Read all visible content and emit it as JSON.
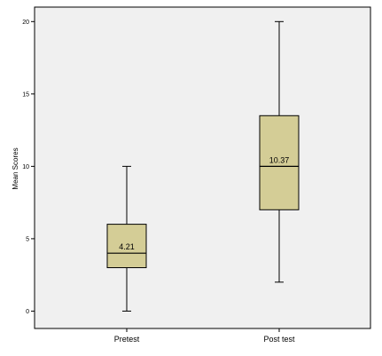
{
  "chart_data": {
    "type": "boxplot",
    "title": "",
    "xlabel": "",
    "ylabel": "Mean Scores",
    "ylim": [
      -1.2,
      21
    ],
    "yticks": [
      0,
      5,
      10,
      15,
      20
    ],
    "ytick_labels": [
      "0",
      "5",
      "10",
      "15",
      "20"
    ],
    "grid": false,
    "categories": [
      "Pretest",
      "Post test"
    ],
    "boxes": [
      {
        "category": "Pretest",
        "min": 0,
        "q1": 3,
        "median": 4,
        "q3": 6,
        "max": 10,
        "mean_label": "4.21"
      },
      {
        "category": "Post test",
        "min": 2,
        "q1": 7,
        "median": 10,
        "q3": 13.5,
        "max": 20,
        "mean_label": "10.37"
      }
    ],
    "colors": {
      "plot_bg": "#f0f0f0",
      "box_fill": "#d4cd96",
      "stroke": "#000000"
    }
  }
}
